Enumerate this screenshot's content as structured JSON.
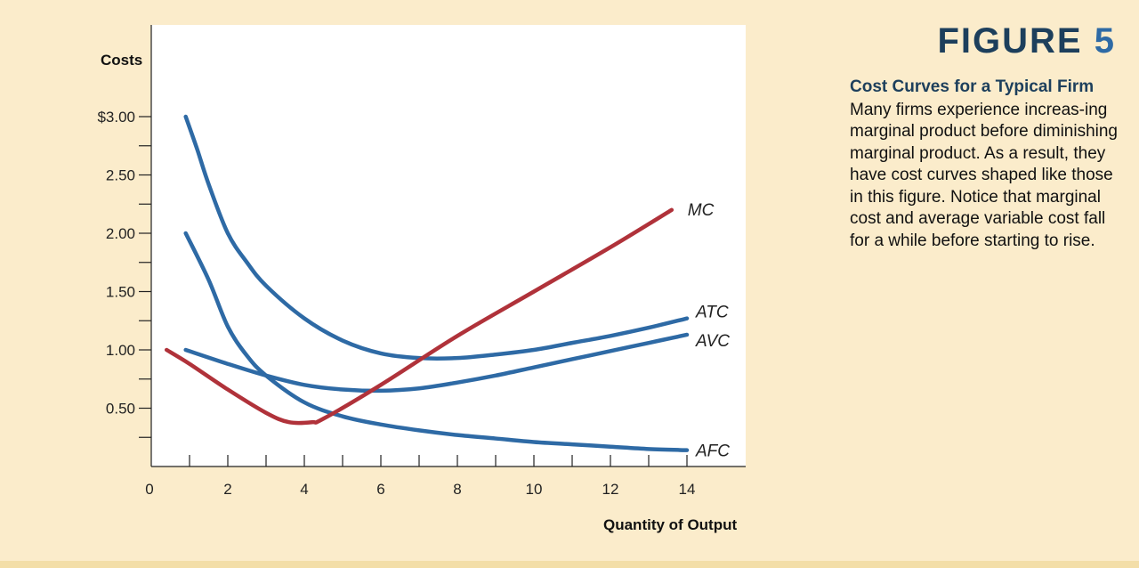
{
  "figure": {
    "label_word": "FIGURE",
    "label_number": "5",
    "caption_title": "Cost Curves for a Typical Firm",
    "caption_body": "Many firms experience increas-ing marginal product before diminishing marginal product. As a result, they have cost curves shaped like those in this figure. Notice that marginal cost and average variable cost fall for a while before starting to rise."
  },
  "colors": {
    "background": "#fbeccb",
    "blue_curves": "#2e6aa5",
    "mc_curve": "#b0323a",
    "title_navy": "#1d3f5c"
  },
  "chart_data": {
    "type": "line",
    "ylabel": "Costs",
    "xlabel": "Quantity of Output",
    "xlim": [
      0,
      15.5
    ],
    "ylim": [
      0,
      3.75
    ],
    "x_ticks": [
      0,
      2,
      4,
      6,
      8,
      10,
      12,
      14
    ],
    "x_tick_labels": [
      "0",
      "2",
      "4",
      "6",
      "8",
      "10",
      "12",
      "14"
    ],
    "x_minor_ticks": [
      1,
      3,
      5,
      7,
      9,
      11,
      13
    ],
    "y_ticks": [
      0.5,
      1.0,
      1.5,
      2.0,
      2.5,
      3.0
    ],
    "y_tick_labels": [
      "0.50",
      "1.00",
      "1.50",
      "2.00",
      "2.50",
      "$3.00"
    ],
    "y_minor_ticks": [
      0.25,
      0.75,
      1.25,
      1.75,
      2.25,
      2.75
    ],
    "grid": false,
    "series": [
      {
        "name": "MC",
        "color": "#b0323a",
        "x": [
          0.4,
          1,
          2,
          3,
          3.6,
          4.2,
          4.5,
          6,
          8,
          10,
          12,
          13.6
        ],
        "y": [
          1.0,
          0.88,
          0.66,
          0.46,
          0.38,
          0.38,
          0.41,
          0.7,
          1.12,
          1.5,
          1.88,
          2.2
        ]
      },
      {
        "name": "ATC",
        "color": "#2e6aa5",
        "x": [
          0.9,
          1.2,
          1.5,
          2,
          2.5,
          3,
          4,
          5,
          6,
          7,
          8,
          9,
          10,
          11,
          12,
          13,
          14
        ],
        "y": [
          3.0,
          2.72,
          2.42,
          2.0,
          1.75,
          1.55,
          1.27,
          1.08,
          0.97,
          0.93,
          0.93,
          0.96,
          1.0,
          1.06,
          1.12,
          1.19,
          1.27
        ]
      },
      {
        "name": "AVC",
        "color": "#2e6aa5",
        "x": [
          0.9,
          2,
          3,
          4,
          5,
          6,
          7,
          8,
          9,
          10,
          11,
          12,
          13,
          14
        ],
        "y": [
          1.0,
          0.88,
          0.78,
          0.7,
          0.66,
          0.65,
          0.67,
          0.72,
          0.78,
          0.85,
          0.92,
          0.99,
          1.06,
          1.13
        ]
      },
      {
        "name": "AFC",
        "color": "#2e6aa5",
        "x": [
          0.9,
          1.5,
          2,
          2.5,
          3,
          4,
          5,
          6,
          7,
          8,
          9,
          10,
          11,
          12,
          13,
          14
        ],
        "y": [
          2.0,
          1.6,
          1.2,
          0.95,
          0.78,
          0.55,
          0.43,
          0.36,
          0.31,
          0.27,
          0.24,
          0.21,
          0.19,
          0.17,
          0.15,
          0.14
        ]
      }
    ]
  }
}
